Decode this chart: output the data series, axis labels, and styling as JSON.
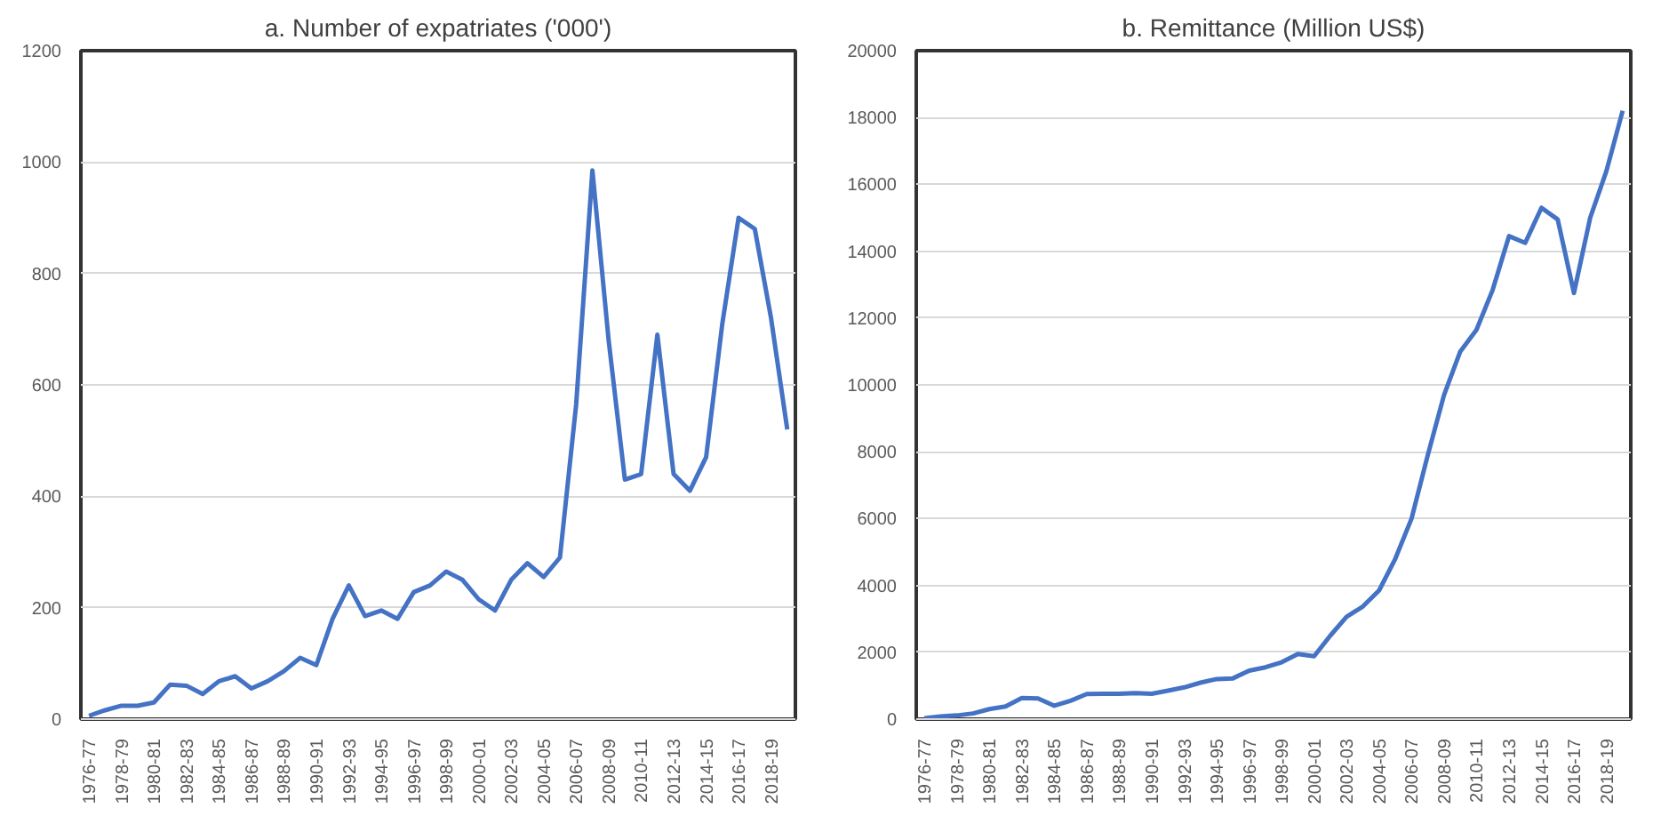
{
  "chart_data": [
    {
      "type": "line",
      "title": "a. Number of expatriates ('000')",
      "categories": [
        "1976-77",
        null,
        "1978-79",
        null,
        "1980-81",
        null,
        "1982-83",
        null,
        "1984-85",
        null,
        "1986-87",
        null,
        "1988-89",
        null,
        "1990-91",
        null,
        "1992-93",
        null,
        "1994-95",
        null,
        "1996-97",
        null,
        "1998-99",
        null,
        "2000-01",
        null,
        "2002-03",
        null,
        "2004-05",
        null,
        "2006-07",
        null,
        "2008-09",
        null,
        "2010-11",
        null,
        "2012-13",
        null,
        "2014-15",
        null,
        "2016-17",
        null,
        "2018-19",
        null
      ],
      "series": [
        {
          "color": "#4472c4",
          "values": [
            6,
            16,
            24,
            24,
            30,
            62,
            60,
            45,
            68,
            77,
            55,
            68,
            86,
            110,
            97,
            180,
            240,
            185,
            195,
            180,
            228,
            240,
            265,
            250,
            215,
            195,
            250,
            280,
            255,
            290,
            565,
            985,
            680,
            430,
            440,
            690,
            440,
            410,
            470,
            710,
            900,
            880,
            720,
            520
          ]
        }
      ],
      "ylim": [
        0,
        1200
      ],
      "yticks": [
        0,
        200,
        400,
        600,
        800,
        1000,
        1200
      ],
      "grid": "y"
    },
    {
      "type": "line",
      "title": "b. Remittance (Million US$)",
      "categories": [
        "1976-77",
        null,
        "1978-79",
        null,
        "1980-81",
        null,
        "1982-83",
        null,
        "1984-85",
        null,
        "1986-87",
        null,
        "1988-89",
        null,
        "1990-91",
        null,
        "1992-93",
        null,
        "1994-95",
        null,
        "1996-97",
        null,
        "1998-99",
        null,
        "2000-01",
        null,
        "2002-03",
        null,
        "2004-05",
        null,
        "2006-07",
        null,
        "2008-09",
        null,
        "2010-11",
        null,
        "2012-13",
        null,
        "2014-15",
        null,
        "2016-17",
        null,
        "2018-19",
        null
      ],
      "series": [
        {
          "color": "#4472c4",
          "values": [
            30,
            80,
            110,
            170,
            300,
            380,
            630,
            620,
            400,
            550,
            750,
            760,
            760,
            780,
            760,
            850,
            950,
            1090,
            1200,
            1220,
            1450,
            1550,
            1700,
            1950,
            1880,
            2500,
            3060,
            3370,
            3850,
            4800,
            6000,
            7900,
            9700,
            11000,
            11650,
            12850,
            14450,
            14250,
            15300,
            14950,
            12750,
            15000,
            16400,
            18200
          ]
        }
      ],
      "ylim": [
        0,
        20000
      ],
      "yticks": [
        0,
        2000,
        4000,
        6000,
        8000,
        10000,
        12000,
        14000,
        16000,
        18000,
        20000
      ],
      "grid": "y"
    }
  ]
}
